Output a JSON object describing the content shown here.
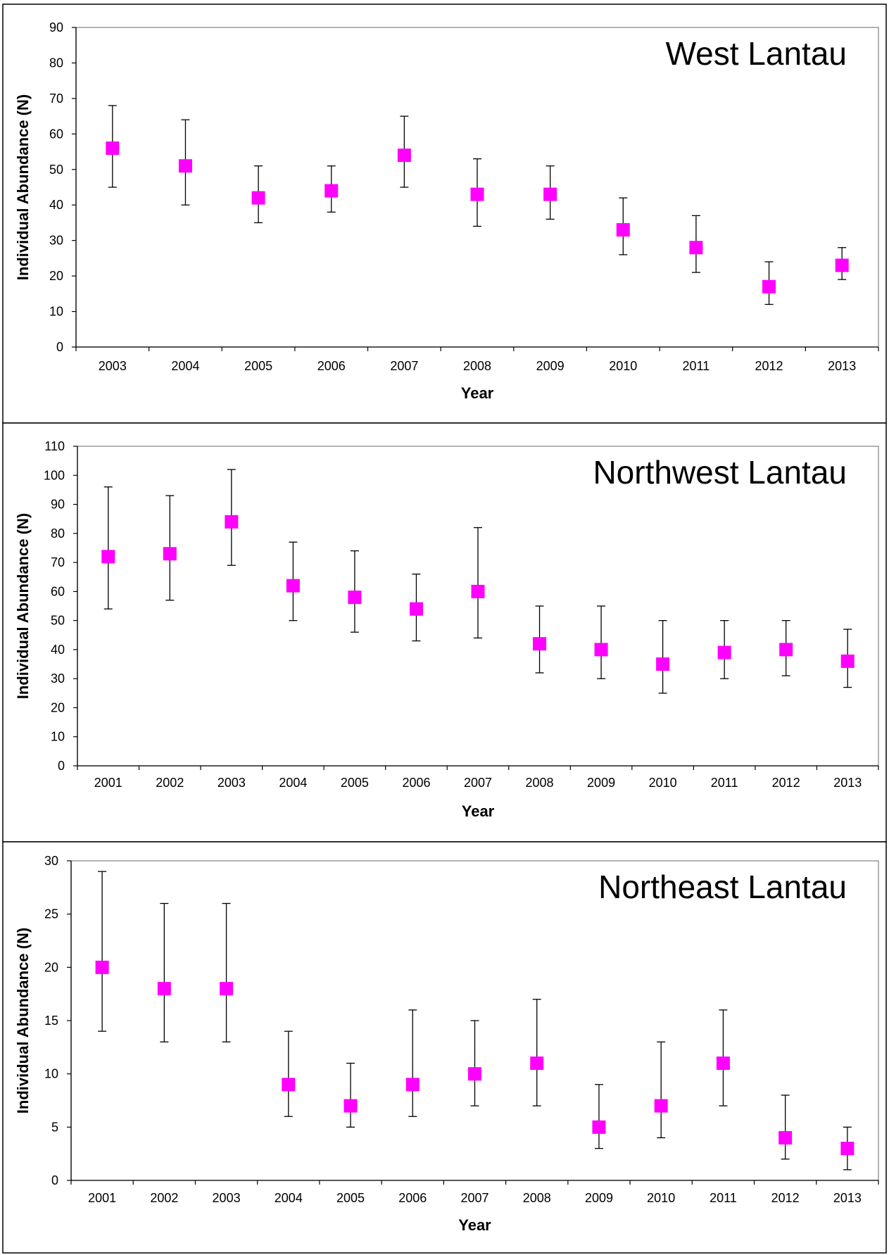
{
  "figure": {
    "marker_color": "#ff00ff",
    "marker_shape": "square"
  },
  "chart_data": [
    {
      "type": "scatter",
      "title": "West Lantau",
      "xlabel": "Year",
      "ylabel": "Individual Abundance (N)",
      "ylim": [
        0,
        90
      ],
      "yticks": [
        0,
        10,
        20,
        30,
        40,
        50,
        60,
        70,
        80,
        90
      ],
      "grid": false,
      "categories": [
        "2003",
        "2004",
        "2005",
        "2006",
        "2007",
        "2008",
        "2009",
        "2010",
        "2011",
        "2012",
        "2013"
      ],
      "values": [
        56,
        51,
        42,
        44,
        54,
        43,
        43,
        33,
        28,
        17,
        23
      ],
      "error_low": [
        45,
        40,
        35,
        38,
        45,
        34,
        36,
        26,
        21,
        12,
        19
      ],
      "error_high": [
        68,
        64,
        51,
        51,
        65,
        53,
        51,
        42,
        37,
        24,
        28
      ]
    },
    {
      "type": "scatter",
      "title": "Northwest Lantau",
      "xlabel": "Year",
      "ylabel": "Individual Abundance (N)",
      "ylim": [
        0,
        110
      ],
      "yticks": [
        0,
        10,
        20,
        30,
        40,
        50,
        60,
        70,
        80,
        90,
        100,
        110
      ],
      "grid": false,
      "categories": [
        "2001",
        "2002",
        "2003",
        "2004",
        "2005",
        "2006",
        "2007",
        "2008",
        "2009",
        "2010",
        "2011",
        "2012",
        "2013"
      ],
      "values": [
        72,
        73,
        84,
        62,
        58,
        54,
        60,
        42,
        40,
        35,
        39,
        40,
        36
      ],
      "error_low": [
        54,
        57,
        69,
        50,
        46,
        43,
        44,
        32,
        30,
        25,
        30,
        31,
        27
      ],
      "error_high": [
        96,
        93,
        102,
        77,
        74,
        66,
        82,
        55,
        55,
        50,
        50,
        50,
        47
      ]
    },
    {
      "type": "scatter",
      "title": "Northeast Lantau",
      "xlabel": "Year",
      "ylabel": "Individual Abundance (N)",
      "ylim": [
        0,
        30
      ],
      "yticks": [
        0,
        5,
        10,
        15,
        20,
        25,
        30
      ],
      "grid": false,
      "categories": [
        "2001",
        "2002",
        "2003",
        "2004",
        "2005",
        "2006",
        "2007",
        "2008",
        "2009",
        "2010",
        "2011",
        "2012",
        "2013"
      ],
      "values": [
        20,
        18,
        18,
        9,
        7,
        9,
        10,
        11,
        5,
        7,
        11,
        4,
        3
      ],
      "error_low": [
        14,
        13,
        13,
        6,
        5,
        6,
        7,
        7,
        3,
        4,
        7,
        2,
        1
      ],
      "error_high": [
        29,
        26,
        26,
        14,
        11,
        16,
        15,
        17,
        9,
        13,
        16,
        8,
        5
      ]
    }
  ]
}
